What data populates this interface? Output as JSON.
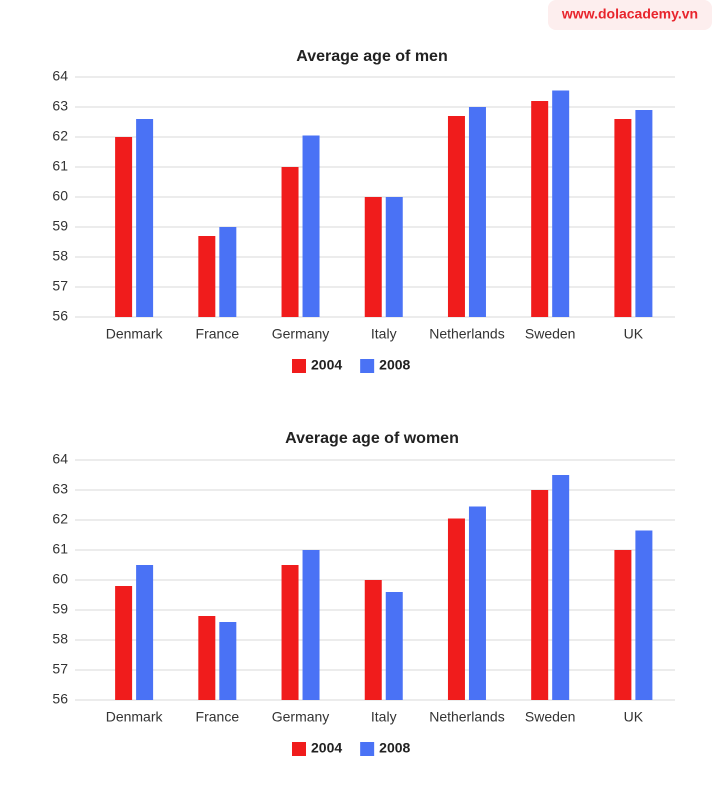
{
  "header": {
    "brand": "www.dolacademy.vn"
  },
  "chart_data": [
    {
      "type": "bar",
      "title": "Average age of men",
      "categories": [
        "Denmark",
        "France",
        "Germany",
        "Italy",
        "Netherlands",
        "Sweden",
        "UK"
      ],
      "series": [
        {
          "name": "2004",
          "color": "#f01c1c",
          "values": [
            62.0,
            58.7,
            61.0,
            60.0,
            62.7,
            63.2,
            62.6
          ]
        },
        {
          "name": "2008",
          "color": "#4a72f5",
          "values": [
            62.6,
            59.0,
            62.05,
            60.0,
            63.0,
            63.55,
            62.9
          ]
        }
      ],
      "ylim": [
        56,
        64
      ],
      "yticks": [
        56,
        57,
        58,
        59,
        60,
        61,
        62,
        63,
        64
      ],
      "grid": true,
      "legend": "bottom"
    },
    {
      "type": "bar",
      "title": "Average age of women",
      "categories": [
        "Denmark",
        "France",
        "Germany",
        "Italy",
        "Netherlands",
        "Sweden",
        "UK"
      ],
      "series": [
        {
          "name": "2004",
          "color": "#f01c1c",
          "values": [
            59.8,
            58.8,
            60.5,
            60.0,
            62.05,
            63.0,
            61.0
          ]
        },
        {
          "name": "2008",
          "color": "#4a72f5",
          "values": [
            60.5,
            58.6,
            61.0,
            59.6,
            62.45,
            63.5,
            61.65
          ]
        }
      ],
      "ylim": [
        56,
        64
      ],
      "yticks": [
        56,
        57,
        58,
        59,
        60,
        61,
        62,
        63,
        64
      ],
      "grid": true,
      "legend": "bottom"
    }
  ]
}
